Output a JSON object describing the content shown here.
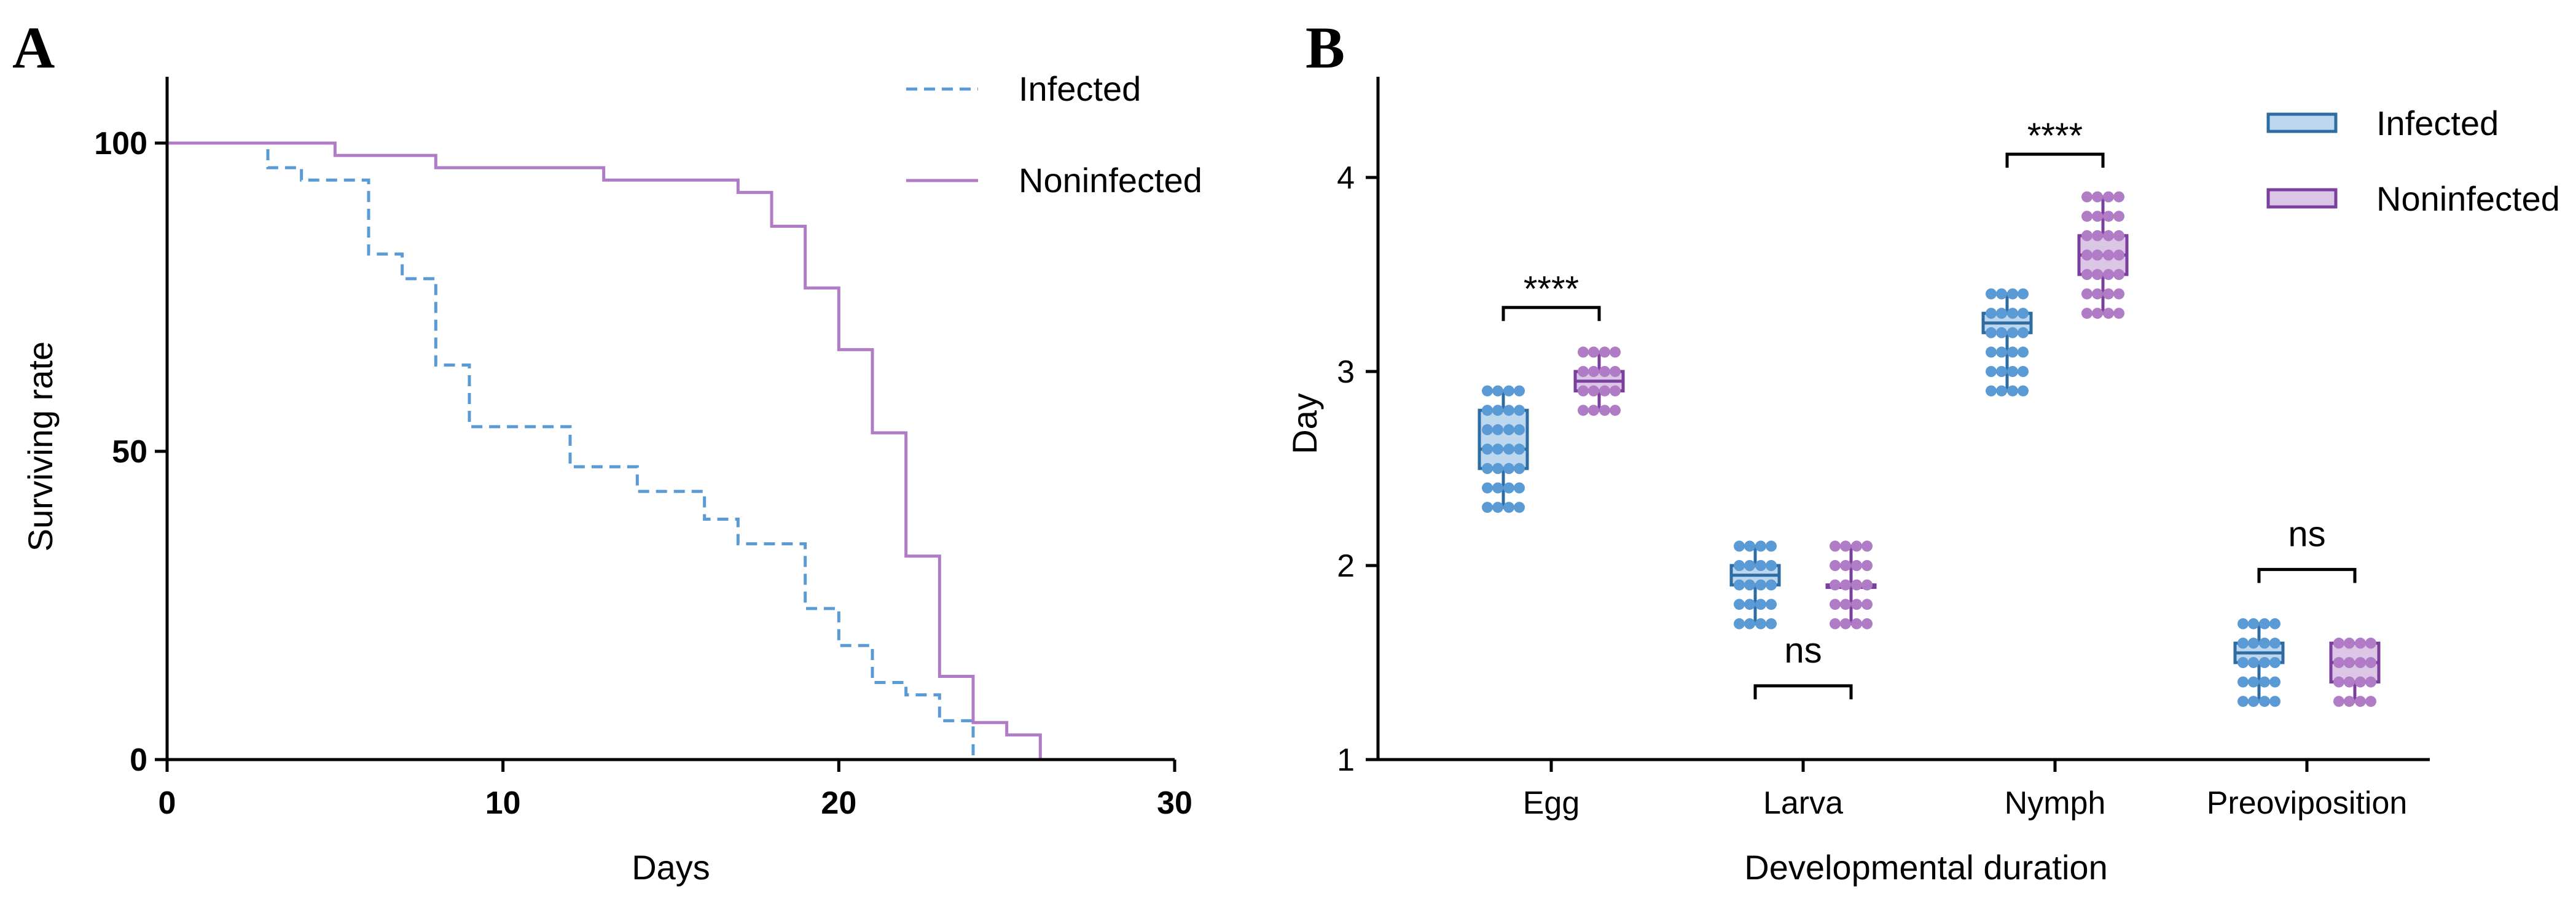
{
  "colors": {
    "infected": "#5B9BD5",
    "infected_dark": "#2E6DA4",
    "infected_fill": "#BDD7EE",
    "noninfected": "#B07CC6",
    "noninfected_dark": "#7B3F9E",
    "noninfected_fill": "#DCC6E6"
  },
  "chart_data": [
    {
      "panel": "A",
      "type": "line",
      "subtype": "survival-step",
      "xlabel": "Days",
      "ylabel": "Surviving rate",
      "xlim": [
        0,
        30
      ],
      "ylim": [
        0,
        110
      ],
      "xticks": [
        0,
        10,
        20,
        30
      ],
      "yticks": [
        0,
        50,
        100
      ],
      "legend_position": "top-right",
      "series": [
        {
          "name": "Infected",
          "style": "dashed",
          "color": "#5B9BD5",
          "x": [
            0,
            3,
            4,
            6,
            7,
            8,
            9,
            12,
            14,
            16,
            17,
            19,
            20,
            21,
            22,
            23,
            24
          ],
          "y": [
            100,
            96,
            94,
            82,
            78,
            64,
            54,
            47.5,
            43.5,
            39,
            35,
            24.5,
            18.5,
            12.5,
            10.5,
            6.3,
            0
          ]
        },
        {
          "name": "Noninfected",
          "style": "solid",
          "color": "#B07CC6",
          "x": [
            0,
            5,
            8,
            13,
            17,
            18,
            19,
            20,
            21,
            22,
            23,
            24,
            25,
            26
          ],
          "y": [
            100,
            98,
            96,
            94,
            92,
            86.5,
            76.5,
            66.5,
            53,
            33,
            13.5,
            6,
            4,
            0
          ]
        }
      ]
    },
    {
      "panel": "B",
      "type": "box",
      "xlabel": "Developmental duration",
      "ylabel": "Day",
      "ylim": [
        1,
        4.5
      ],
      "yticks": [
        1,
        2,
        3,
        4
      ],
      "legend_position": "top-right",
      "categories": [
        "Egg",
        "Larva",
        "Nymph",
        "Preoviposition"
      ],
      "series_names": [
        "Infected",
        "Noninfected"
      ],
      "boxes": [
        {
          "category": "Egg",
          "series": "Infected",
          "min": 2.3,
          "q1": 2.5,
          "median": 2.6,
          "q3": 2.8,
          "max": 2.9,
          "points": [
            2.3,
            2.4,
            2.5,
            2.6,
            2.7,
            2.8,
            2.9
          ]
        },
        {
          "category": "Egg",
          "series": "Noninfected",
          "min": 2.8,
          "q1": 2.9,
          "median": 2.95,
          "q3": 3.0,
          "max": 3.1,
          "points": [
            2.8,
            2.9,
            3.0,
            3.1
          ]
        },
        {
          "category": "Larva",
          "series": "Infected",
          "min": 1.7,
          "q1": 1.9,
          "median": 1.95,
          "q3": 2.0,
          "max": 2.1,
          "points": [
            1.7,
            1.8,
            1.9,
            2.0,
            2.1
          ]
        },
        {
          "category": "Larva",
          "series": "Noninfected",
          "min": 1.7,
          "q1": 1.9,
          "median": 1.9,
          "q3": 1.9,
          "max": 2.1,
          "points": [
            1.7,
            1.8,
            1.9,
            2.0,
            2.1
          ]
        },
        {
          "category": "Nymph",
          "series": "Infected",
          "min": 2.9,
          "q1": 3.2,
          "median": 3.25,
          "q3": 3.3,
          "max": 3.4,
          "points": [
            2.9,
            3.0,
            3.1,
            3.2,
            3.3,
            3.4
          ]
        },
        {
          "category": "Nymph",
          "series": "Noninfected",
          "min": 3.3,
          "q1": 3.5,
          "median": 3.6,
          "q3": 3.7,
          "max": 3.9,
          "points": [
            3.3,
            3.4,
            3.5,
            3.6,
            3.7,
            3.8,
            3.9
          ]
        },
        {
          "category": "Preoviposition",
          "series": "Infected",
          "min": 1.3,
          "q1": 1.5,
          "median": 1.55,
          "q3": 1.6,
          "max": 1.7,
          "points": [
            1.3,
            1.4,
            1.5,
            1.6,
            1.7
          ]
        },
        {
          "category": "Preoviposition",
          "series": "Noninfected",
          "min": 1.3,
          "q1": 1.4,
          "median": 1.5,
          "q3": 1.6,
          "max": 1.6,
          "points": [
            1.3,
            1.4,
            1.5,
            1.6
          ]
        }
      ],
      "annotations": [
        {
          "category": "Egg",
          "text": "****",
          "y": 3.33
        },
        {
          "category": "Larva",
          "text": "ns",
          "y": 1.38
        },
        {
          "category": "Nymph",
          "text": "****",
          "y": 4.12
        },
        {
          "category": "Preoviposition",
          "text": "ns",
          "y": 1.98
        }
      ]
    }
  ]
}
